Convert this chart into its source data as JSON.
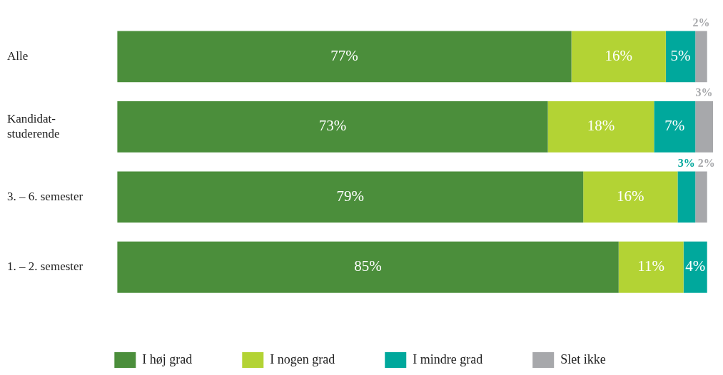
{
  "chart_data": {
    "type": "bar",
    "orientation": "horizontal",
    "stacked": true,
    "categories": [
      "Alle",
      "Kandidat-studerende",
      "3. – 6. semester",
      "1. – 2. semester"
    ],
    "xlim": [
      0,
      101
    ],
    "tick_labels": "y",
    "legend": "bottom",
    "series": [
      {
        "name": "I høj grad",
        "color": "#4b8e3b",
        "values": [
          77,
          73,
          79,
          85
        ],
        "value_labels": [
          "77%",
          "73%",
          "79%",
          "85%"
        ]
      },
      {
        "name": "I nogen grad",
        "color": "#b3d334",
        "values": [
          16,
          18,
          16,
          11
        ],
        "value_labels": [
          "16%",
          "18%",
          "16%",
          "11%"
        ]
      },
      {
        "name": "I mindre grad",
        "color": "#00a89c",
        "values": [
          5,
          7,
          3,
          4
        ],
        "value_labels": [
          "5%",
          "7%",
          "3%",
          "4%"
        ]
      },
      {
        "name": "Slet ikke",
        "color": "#a7a8ab",
        "values": [
          2,
          3,
          2,
          null
        ],
        "value_labels": [
          "2%",
          "3%",
          "2%",
          null
        ]
      }
    ]
  }
}
